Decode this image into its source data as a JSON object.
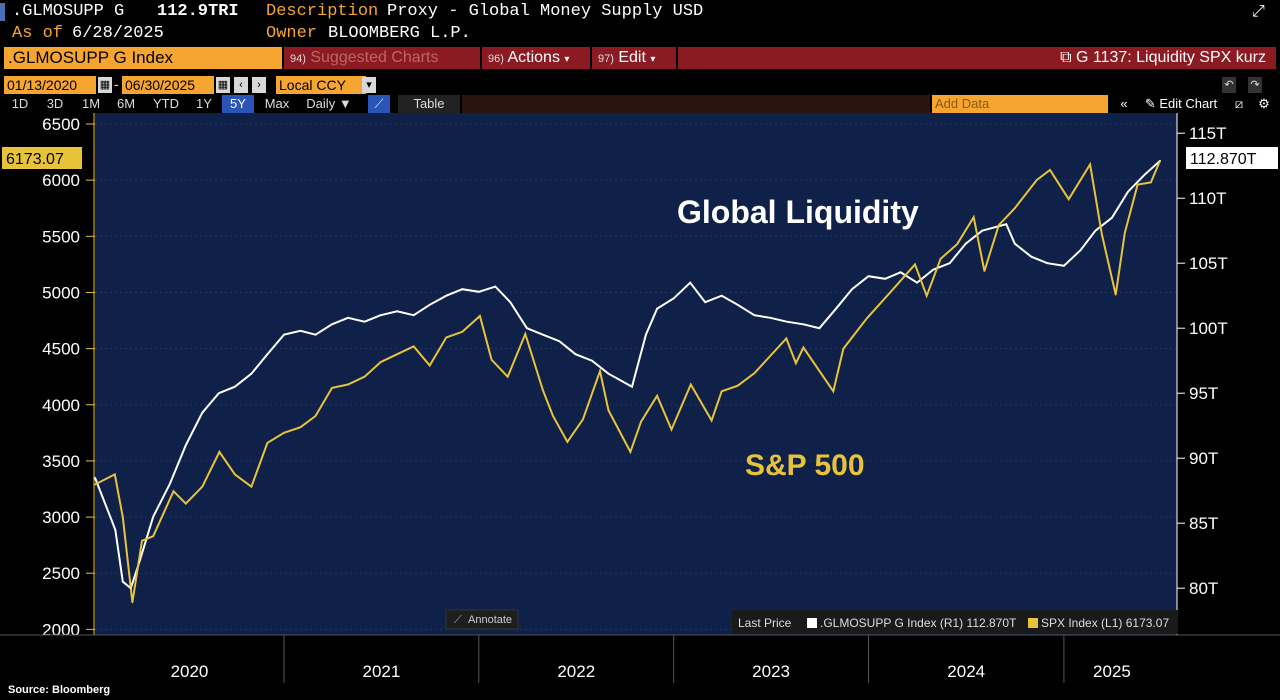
{
  "header": {
    "ticker": ".GLMOSUPP G",
    "last_value": "112.9TRI",
    "description_label": "Description",
    "description": "Proxy - Global Money Supply USD",
    "asof_label": "As of",
    "asof_date": "6/28/2025",
    "owner_label": "Owner",
    "owner": "BLOOMBERG L.P."
  },
  "toolbar": {
    "index_name": ".GLMOSUPP G Index",
    "suggested_num": "94)",
    "suggested_label": "Suggested Charts",
    "actions_num": "96)",
    "actions_label": "Actions",
    "edit_num": "97)",
    "edit_label": "Edit",
    "chart_name": "G 1137: Liquidity SPX kurz",
    "start_date": "01/13/2020",
    "end_date": "06/30/2025",
    "currency": "Local CCY",
    "periods": [
      "1D",
      "3D",
      "1M",
      "6M",
      "YTD",
      "1Y",
      "5Y",
      "Max"
    ],
    "active_period": "5Y",
    "frequency": "Daily",
    "table_label": "Table",
    "add_data_placeholder": "Add Data",
    "edit_chart_label": "Edit Chart"
  },
  "colors": {
    "background": "#000000",
    "plot_background": "#0f2148",
    "liquidity_line": "#ffffff",
    "spx_line": "#e8c33a",
    "accent_orange": "#f7a531",
    "toolbar_red": "#8b1a22",
    "active_blue": "#2a55b8"
  },
  "legend": {
    "prefix": "Last Price",
    "entries": [
      {
        "label": ".GLMOSUPP G Index",
        "axis": "(R1)",
        "value": "112.870T",
        "color": "#ffffff"
      },
      {
        "label": "SPX Index",
        "axis": "(L1)",
        "value": "6173.07",
        "color": "#e8c33a"
      }
    ]
  },
  "annotate_label": "Annotate",
  "source": "Source: Bloomberg",
  "chart_data": {
    "type": "line",
    "annotations": [
      "Global Liquidity",
      "S&P 500"
    ],
    "x_ticks": [
      "2020",
      "2021",
      "2022",
      "2023",
      "2024",
      "2025"
    ],
    "x_range": [
      "2020-01-13",
      "2025-06-30"
    ],
    "left_axis": {
      "ticks": [
        2000,
        2500,
        3000,
        3500,
        4000,
        4500,
        5000,
        5500,
        6000,
        6500
      ],
      "range": [
        1950,
        6580
      ],
      "last_label": "6173.07"
    },
    "right_axis": {
      "ticks": [
        "80T",
        "85T",
        "90T",
        "95T",
        "100T",
        "105T",
        "110T",
        "115T"
      ],
      "tick_values": [
        80,
        85,
        90,
        95,
        100,
        105,
        110,
        115
      ],
      "range": [
        76.4,
        116.4
      ],
      "last_label": "112.870T"
    },
    "series": [
      {
        "name": ".GLMOSUPP G Index",
        "axis": "right",
        "points": [
          [
            "2020-01-13",
            88.5
          ],
          [
            "2020-02-20",
            84.5
          ],
          [
            "2020-03-05",
            80.5
          ],
          [
            "2020-03-20",
            80.0
          ],
          [
            "2020-04-05",
            82.0
          ],
          [
            "2020-05-01",
            85.5
          ],
          [
            "2020-06-01",
            88.0
          ],
          [
            "2020-07-01",
            91.0
          ],
          [
            "2020-08-01",
            93.5
          ],
          [
            "2020-09-01",
            95.0
          ],
          [
            "2020-10-01",
            95.5
          ],
          [
            "2020-11-01",
            96.5
          ],
          [
            "2020-12-01",
            98.0
          ],
          [
            "2021-01-01",
            99.5
          ],
          [
            "2021-02-01",
            99.8
          ],
          [
            "2021-03-01",
            99.5
          ],
          [
            "2021-04-01",
            100.3
          ],
          [
            "2021-05-01",
            100.8
          ],
          [
            "2021-06-01",
            100.5
          ],
          [
            "2021-07-01",
            101.0
          ],
          [
            "2021-08-01",
            101.3
          ],
          [
            "2021-09-01",
            101.0
          ],
          [
            "2021-10-01",
            101.8
          ],
          [
            "2021-11-01",
            102.5
          ],
          [
            "2021-12-01",
            103.0
          ],
          [
            "2022-01-01",
            102.8
          ],
          [
            "2022-02-01",
            103.2
          ],
          [
            "2022-03-01",
            102.0
          ],
          [
            "2022-04-01",
            100.0
          ],
          [
            "2022-05-01",
            99.5
          ],
          [
            "2022-06-01",
            99.0
          ],
          [
            "2022-07-01",
            98.0
          ],
          [
            "2022-08-01",
            97.5
          ],
          [
            "2022-09-01",
            96.5
          ],
          [
            "2022-10-15",
            95.5
          ],
          [
            "2022-11-10",
            99.5
          ],
          [
            "2022-12-01",
            101.5
          ],
          [
            "2023-01-01",
            102.3
          ],
          [
            "2023-02-01",
            103.5
          ],
          [
            "2023-03-01",
            102.0
          ],
          [
            "2023-04-01",
            102.5
          ],
          [
            "2023-05-01",
            101.8
          ],
          [
            "2023-06-01",
            101.0
          ],
          [
            "2023-07-01",
            100.8
          ],
          [
            "2023-08-01",
            100.5
          ],
          [
            "2023-09-01",
            100.3
          ],
          [
            "2023-10-01",
            100.0
          ],
          [
            "2023-11-01",
            101.5
          ],
          [
            "2023-12-01",
            103.0
          ],
          [
            "2024-01-01",
            104.0
          ],
          [
            "2024-02-01",
            103.8
          ],
          [
            "2024-03-01",
            104.3
          ],
          [
            "2024-04-01",
            103.5
          ],
          [
            "2024-05-01",
            104.5
          ],
          [
            "2024-06-01",
            105.0
          ],
          [
            "2024-07-01",
            106.5
          ],
          [
            "2024-08-01",
            107.5
          ],
          [
            "2024-09-15",
            108.0
          ],
          [
            "2024-10-01",
            106.5
          ],
          [
            "2024-11-01",
            105.5
          ],
          [
            "2024-12-01",
            105.0
          ],
          [
            "2025-01-01",
            104.8
          ],
          [
            "2025-02-01",
            106.0
          ],
          [
            "2025-03-01",
            107.5
          ],
          [
            "2025-04-01",
            108.5
          ],
          [
            "2025-05-01",
            110.5
          ],
          [
            "2025-06-01",
            111.8
          ],
          [
            "2025-06-30",
            112.87
          ]
        ]
      },
      {
        "name": "SPX Index",
        "axis": "left",
        "points": [
          [
            "2020-01-13",
            3290
          ],
          [
            "2020-02-19",
            3380
          ],
          [
            "2020-03-05",
            3000
          ],
          [
            "2020-03-23",
            2240
          ],
          [
            "2020-04-10",
            2790
          ],
          [
            "2020-05-01",
            2830
          ],
          [
            "2020-06-08",
            3230
          ],
          [
            "2020-07-01",
            3120
          ],
          [
            "2020-08-01",
            3270
          ],
          [
            "2020-09-02",
            3580
          ],
          [
            "2020-10-01",
            3380
          ],
          [
            "2020-11-01",
            3270
          ],
          [
            "2020-12-01",
            3660
          ],
          [
            "2021-01-01",
            3750
          ],
          [
            "2021-02-01",
            3800
          ],
          [
            "2021-03-01",
            3900
          ],
          [
            "2021-04-01",
            4150
          ],
          [
            "2021-05-01",
            4180
          ],
          [
            "2021-06-01",
            4250
          ],
          [
            "2021-07-01",
            4380
          ],
          [
            "2021-08-01",
            4450
          ],
          [
            "2021-09-01",
            4520
          ],
          [
            "2021-10-01",
            4350
          ],
          [
            "2021-11-01",
            4600
          ],
          [
            "2021-12-01",
            4650
          ],
          [
            "2022-01-03",
            4790
          ],
          [
            "2022-01-25",
            4400
          ],
          [
            "2022-02-24",
            4250
          ],
          [
            "2022-03-29",
            4630
          ],
          [
            "2022-05-01",
            4130
          ],
          [
            "2022-05-20",
            3900
          ],
          [
            "2022-06-16",
            3670
          ],
          [
            "2022-07-15",
            3870
          ],
          [
            "2022-08-16",
            4300
          ],
          [
            "2022-09-01",
            3950
          ],
          [
            "2022-10-12",
            3580
          ],
          [
            "2022-11-01",
            3850
          ],
          [
            "2022-12-01",
            4080
          ],
          [
            "2022-12-28",
            3780
          ],
          [
            "2023-02-02",
            4180
          ],
          [
            "2023-03-13",
            3860
          ],
          [
            "2023-04-01",
            4120
          ],
          [
            "2023-05-01",
            4170
          ],
          [
            "2023-06-01",
            4280
          ],
          [
            "2023-07-31",
            4590
          ],
          [
            "2023-08-18",
            4370
          ],
          [
            "2023-09-01",
            4510
          ],
          [
            "2023-10-27",
            4120
          ],
          [
            "2023-11-15",
            4500
          ],
          [
            "2023-12-29",
            4770
          ],
          [
            "2024-02-01",
            4950
          ],
          [
            "2024-03-28",
            5250
          ],
          [
            "2024-04-19",
            4970
          ],
          [
            "2024-05-15",
            5300
          ],
          [
            "2024-06-15",
            5430
          ],
          [
            "2024-07-16",
            5670
          ],
          [
            "2024-08-05",
            5190
          ],
          [
            "2024-09-01",
            5600
          ],
          [
            "2024-10-01",
            5750
          ],
          [
            "2024-11-11",
            6000
          ],
          [
            "2024-12-06",
            6090
          ],
          [
            "2025-01-10",
            5830
          ],
          [
            "2025-02-19",
            6140
          ],
          [
            "2025-03-13",
            5520
          ],
          [
            "2025-04-08",
            4980
          ],
          [
            "2025-04-25",
            5530
          ],
          [
            "2025-05-19",
            5960
          ],
          [
            "2025-06-13",
            5980
          ],
          [
            "2025-06-30",
            6173.07
          ]
        ]
      }
    ],
    "grid": true,
    "legend_position": "bottom-right"
  }
}
